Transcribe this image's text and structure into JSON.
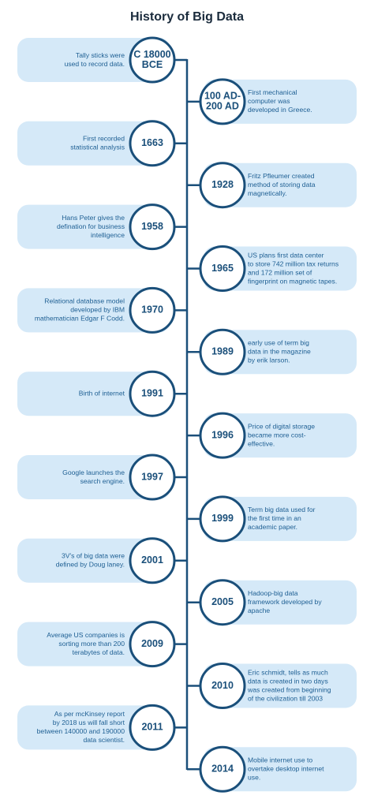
{
  "title": "History of Big Data",
  "events": [
    {
      "date": [
        "C 18000",
        "BCE"
      ],
      "text": [
        "Tally sticks were",
        "used to record data."
      ]
    },
    {
      "date": [
        "100 AD-",
        "200 AD"
      ],
      "text": [
        "First mechanical",
        "computer was",
        "developed in Greece."
      ]
    },
    {
      "date": [
        "1663"
      ],
      "text": [
        "First recorded",
        "statistical analysis"
      ]
    },
    {
      "date": [
        "1928"
      ],
      "text": [
        "Fritz Pfleumer created",
        "method of storing data",
        "magnetically."
      ]
    },
    {
      "date": [
        "1958"
      ],
      "text": [
        "Hans Peter gives the",
        "defination for business",
        "intelligence"
      ]
    },
    {
      "date": [
        "1965"
      ],
      "text": [
        "US plans first data center",
        "to store 742 million tax returns",
        "and 172 million set of",
        "fingerprint on magnetic tapes."
      ]
    },
    {
      "date": [
        "1970"
      ],
      "text": [
        "Relational database model",
        "developed by IBM",
        "mathematician Edgar F Codd."
      ]
    },
    {
      "date": [
        "1989"
      ],
      "text": [
        "early use of term big",
        "data in the magazine",
        "by erik larson."
      ]
    },
    {
      "date": [
        "1991"
      ],
      "text": [
        "Birth of internet"
      ]
    },
    {
      "date": [
        "1996"
      ],
      "text": [
        "Price of digital storage",
        "became more cost-",
        "effective."
      ]
    },
    {
      "date": [
        "1997"
      ],
      "text": [
        "Google launches the",
        "search engine."
      ]
    },
    {
      "date": [
        "1999"
      ],
      "text": [
        "Term big data used for",
        "the first time in an",
        "academic paper."
      ]
    },
    {
      "date": [
        "2001"
      ],
      "text": [
        "3V's of big data were",
        "defined by Doug laney."
      ]
    },
    {
      "date": [
        "2005"
      ],
      "text": [
        "Hadoop-big data",
        "framework developed by",
        "apache"
      ]
    },
    {
      "date": [
        "2009"
      ],
      "text": [
        "Average US companies is",
        "sorting more than 200",
        "terabytes of data."
      ]
    },
    {
      "date": [
        "2010"
      ],
      "text": [
        "Eric schmidt, tells as much",
        "data is created in two days",
        "was created from beginning",
        "of the civilization till 2003"
      ]
    },
    {
      "date": [
        "2011"
      ],
      "text": [
        "As per mcKinsey report",
        "by 2018 us will fall short",
        "between 140000 and 190000",
        "data scientist."
      ]
    },
    {
      "date": [
        "2014"
      ],
      "text": [
        "Mobile internet use to",
        "overtake desktop internet",
        "use."
      ]
    }
  ]
}
